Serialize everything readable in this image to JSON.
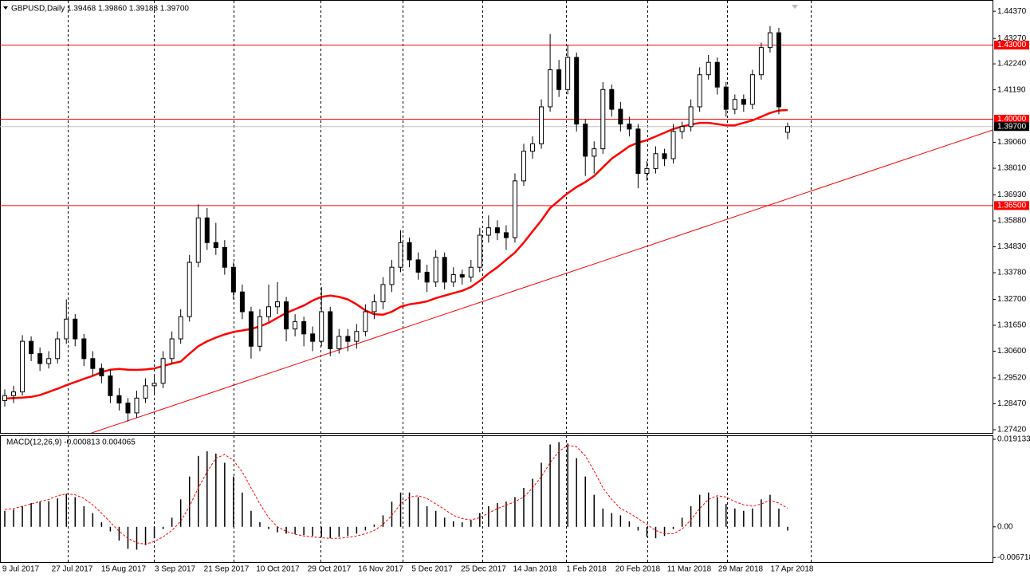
{
  "chart_data": [
    {
      "type": "candlestick",
      "title": "GBPUSD,Daily  1.39468 1.39860 1.39188 1.39700",
      "x_labels": [
        "9 Jul 2017",
        "27 Jul 2017",
        "15 Aug 2017",
        "3 Sep 2017",
        "21 Sep 2017",
        "10 Oct 2017",
        "29 Oct 2017",
        "16 Nov 2017",
        "5 Dec 2017",
        "25 Dec 2017",
        "14 Jan 2018",
        "1 Feb 2018",
        "20 Feb 2018",
        "11 Mar 2018",
        "29 Mar 2018",
        "17 Apr 2018"
      ],
      "ohlc": [
        [
          1.286,
          1.2905,
          1.2835,
          1.288
        ],
        [
          1.288,
          1.292,
          1.285,
          1.2895
        ],
        [
          1.2895,
          1.3125,
          1.288,
          1.31
        ],
        [
          1.31,
          1.312,
          1.302,
          1.305
        ],
        [
          1.305,
          1.3075,
          1.298,
          1.301
        ],
        [
          1.301,
          1.306,
          1.299,
          1.303
        ],
        [
          1.303,
          1.314,
          1.301,
          1.311
        ],
        [
          1.311,
          1.327,
          1.309,
          1.319
        ],
        [
          1.319,
          1.321,
          1.308,
          1.311
        ],
        [
          1.311,
          1.313,
          1.3,
          1.303
        ],
        [
          1.303,
          1.306,
          1.296,
          1.299
        ],
        [
          1.299,
          1.301,
          1.293,
          1.296
        ],
        [
          1.296,
          1.2985,
          1.285,
          1.288
        ],
        [
          1.288,
          1.291,
          1.282,
          1.285
        ],
        [
          1.285,
          1.287,
          1.2775,
          1.281
        ],
        [
          1.281,
          1.29,
          1.279,
          1.287
        ],
        [
          1.287,
          1.295,
          1.285,
          1.292
        ],
        [
          1.292,
          1.296,
          1.289,
          1.293
        ],
        [
          1.293,
          1.306,
          1.291,
          1.303
        ],
        [
          1.303,
          1.314,
          1.301,
          1.311
        ],
        [
          1.311,
          1.323,
          1.309,
          1.32
        ],
        [
          1.32,
          1.345,
          1.318,
          1.342
        ],
        [
          1.342,
          1.3655,
          1.34,
          1.36
        ],
        [
          1.36,
          1.364,
          1.347,
          1.35
        ],
        [
          1.35,
          1.358,
          1.345,
          1.348
        ],
        [
          1.348,
          1.351,
          1.337,
          1.34
        ],
        [
          1.34,
          1.342,
          1.327,
          1.33
        ],
        [
          1.33,
          1.333,
          1.319,
          1.322
        ],
        [
          1.322,
          1.324,
          1.303,
          1.308
        ],
        [
          1.308,
          1.323,
          1.306,
          1.32
        ],
        [
          1.32,
          1.333,
          1.318,
          1.324
        ],
        [
          1.324,
          1.334,
          1.321,
          1.326
        ],
        [
          1.326,
          1.328,
          1.31,
          1.315
        ],
        [
          1.315,
          1.321,
          1.312,
          1.318
        ],
        [
          1.318,
          1.32,
          1.308,
          1.313
        ],
        [
          1.313,
          1.316,
          1.306,
          1.31
        ],
        [
          1.31,
          1.332,
          1.308,
          1.322
        ],
        [
          1.322,
          1.324,
          1.304,
          1.307
        ],
        [
          1.307,
          1.315,
          1.305,
          1.312
        ],
        [
          1.312,
          1.315,
          1.306,
          1.31
        ],
        [
          1.31,
          1.317,
          1.307,
          1.314
        ],
        [
          1.314,
          1.325,
          1.312,
          1.322
        ],
        [
          1.322,
          1.329,
          1.319,
          1.326
        ],
        [
          1.326,
          1.336,
          1.323,
          1.333
        ],
        [
          1.333,
          1.343,
          1.33,
          1.34
        ],
        [
          1.34,
          1.355,
          1.338,
          1.35
        ],
        [
          1.35,
          1.352,
          1.34,
          1.343
        ],
        [
          1.343,
          1.346,
          1.335,
          1.338
        ],
        [
          1.338,
          1.341,
          1.33,
          1.334
        ],
        [
          1.334,
          1.347,
          1.332,
          1.344
        ],
        [
          1.344,
          1.346,
          1.331,
          1.334
        ],
        [
          1.334,
          1.34,
          1.332,
          1.337
        ],
        [
          1.337,
          1.339,
          1.333,
          1.336
        ],
        [
          1.336,
          1.343,
          1.334,
          1.34
        ],
        [
          1.34,
          1.356,
          1.338,
          1.353
        ],
        [
          1.353,
          1.361,
          1.35,
          1.356
        ],
        [
          1.356,
          1.359,
          1.351,
          1.354
        ],
        [
          1.354,
          1.357,
          1.347,
          1.352
        ],
        [
          1.352,
          1.378,
          1.35,
          1.375
        ],
        [
          1.375,
          1.39,
          1.373,
          1.387
        ],
        [
          1.387,
          1.393,
          1.384,
          1.39
        ],
        [
          1.39,
          1.408,
          1.388,
          1.405
        ],
        [
          1.405,
          1.4345,
          1.403,
          1.42
        ],
        [
          1.42,
          1.424,
          1.409,
          1.412
        ],
        [
          1.412,
          1.43,
          1.41,
          1.425
        ],
        [
          1.425,
          1.427,
          1.395,
          1.398
        ],
        [
          1.398,
          1.4,
          1.377,
          1.385
        ],
        [
          1.385,
          1.391,
          1.378,
          1.388
        ],
        [
          1.388,
          1.415,
          1.386,
          1.412
        ],
        [
          1.412,
          1.414,
          1.401,
          1.404
        ],
        [
          1.404,
          1.407,
          1.395,
          1.398
        ],
        [
          1.398,
          1.401,
          1.393,
          1.396
        ],
        [
          1.396,
          1.398,
          1.372,
          1.378
        ],
        [
          1.378,
          1.383,
          1.375,
          1.38
        ],
        [
          1.38,
          1.389,
          1.378,
          1.386
        ],
        [
          1.386,
          1.388,
          1.381,
          1.384
        ],
        [
          1.384,
          1.398,
          1.382,
          1.395
        ],
        [
          1.395,
          1.399,
          1.392,
          1.397
        ],
        [
          1.397,
          1.408,
          1.395,
          1.405
        ],
        [
          1.405,
          1.421,
          1.403,
          1.418
        ],
        [
          1.418,
          1.426,
          1.416,
          1.423
        ],
        [
          1.423,
          1.425,
          1.41,
          1.413
        ],
        [
          1.413,
          1.415,
          1.401,
          1.404
        ],
        [
          1.404,
          1.41,
          1.402,
          1.408
        ],
        [
          1.408,
          1.41,
          1.403,
          1.406
        ],
        [
          1.406,
          1.42,
          1.404,
          1.418
        ],
        [
          1.418,
          1.431,
          1.416,
          1.429
        ],
        [
          1.429,
          1.4377,
          1.427,
          1.435
        ],
        [
          1.435,
          1.437,
          1.402,
          1.405
        ],
        [
          1.39468,
          1.3986,
          1.39188,
          1.397
        ]
      ],
      "bull_color": "#ffffff",
      "bear_color": "#000000",
      "ma": {
        "color": "#ff0000",
        "values": [
          1.2868,
          1.287,
          1.2872,
          1.2875,
          1.2882,
          1.2895,
          1.2908,
          1.2922,
          1.2935,
          1.2948,
          1.296,
          1.2975,
          1.2985,
          1.2988,
          1.2985,
          1.2984,
          1.2986,
          1.299,
          1.3,
          1.301,
          1.3018,
          1.305,
          1.308,
          1.31,
          1.3115,
          1.3128,
          1.3138,
          1.3144,
          1.315,
          1.316,
          1.3175,
          1.3195,
          1.3215,
          1.323,
          1.3245,
          1.3265,
          1.328,
          1.3285,
          1.328,
          1.327,
          1.325,
          1.3225,
          1.321,
          1.3208,
          1.322,
          1.324,
          1.325,
          1.3255,
          1.3262,
          1.3275,
          1.3285,
          1.3295,
          1.3305,
          1.332,
          1.3345,
          1.3375,
          1.34,
          1.343,
          1.346,
          1.35,
          1.3545,
          1.359,
          1.364,
          1.367,
          1.37,
          1.3725,
          1.3745,
          1.377,
          1.3805,
          1.384,
          1.3865,
          1.389,
          1.3905,
          1.3915,
          1.393,
          1.3945,
          1.396,
          1.397,
          1.3978,
          1.3985,
          1.3985,
          1.398,
          1.3975,
          1.3975,
          1.3985,
          1.3995,
          1.401,
          1.4025,
          1.4035,
          1.4037
        ]
      },
      "levels": [
        {
          "value": 1.43,
          "label": "1.43000"
        },
        {
          "value": 1.4,
          "label": "1.40000"
        },
        {
          "value": 1.365,
          "label": "1.36500"
        }
      ],
      "level_color": "#ff0000",
      "current": {
        "value": 1.397,
        "label": "1.39700"
      },
      "trend_line": [
        1.2604,
        1.3956
      ],
      "ylim": [
        1.2729,
        1.4473
      ],
      "yticks": [
        {
          "value": 1.4437,
          "label": "1.44370"
        },
        {
          "value": 1.4327,
          "label": "1.43270"
        },
        {
          "value": 1.4224,
          "label": "1.42240"
        },
        {
          "value": 1.4119,
          "label": "1.41190"
        },
        {
          "value": 1.3906,
          "label": "1.39060"
        },
        {
          "value": 1.3801,
          "label": "1.38010"
        },
        {
          "value": 1.3693,
          "label": "1.36930"
        },
        {
          "value": 1.3588,
          "label": "1.35880"
        },
        {
          "value": 1.3483,
          "label": "1.34830"
        },
        {
          "value": 1.3378,
          "label": "1.33780"
        },
        {
          "value": 1.327,
          "label": "1.32700"
        },
        {
          "value": 1.3165,
          "label": "1.31650"
        },
        {
          "value": 1.306,
          "label": "1.30600"
        },
        {
          "value": 1.2952,
          "label": "1.29520"
        },
        {
          "value": 1.2847,
          "label": "1.28470"
        },
        {
          "value": 1.2742,
          "label": "1.27420"
        }
      ],
      "grid": true
    },
    {
      "type": "macd",
      "title": "MACD(12,26,9) -0.000813 0.004065",
      "histogram": {
        "color": "#000000",
        "values": [
          0.0035,
          0.0038,
          0.0045,
          0.0052,
          0.0055,
          0.0056,
          0.0062,
          0.0072,
          0.0065,
          0.0045,
          0.003,
          0.001,
          -0.001,
          -0.003,
          -0.0048,
          -0.005,
          -0.004,
          -0.0025,
          -0.0005,
          0.002,
          0.006,
          0.011,
          0.0155,
          0.0165,
          0.016,
          0.014,
          0.011,
          0.0075,
          0.0035,
          0.001,
          -0.0005,
          -0.0012,
          -0.0015,
          -0.0016,
          -0.0018,
          -0.002,
          -0.0022,
          -0.0025,
          -0.0022,
          -0.002,
          -0.0015,
          -0.0008,
          0.0005,
          0.0025,
          0.0055,
          0.0075,
          0.0075,
          0.0065,
          0.0045,
          0.0035,
          0.002,
          0.0012,
          0.001,
          0.0015,
          0.003,
          0.0045,
          0.0052,
          0.0055,
          0.0065,
          0.0085,
          0.0105,
          0.014,
          0.018,
          0.0185,
          0.0182,
          0.015,
          0.011,
          0.007,
          0.004,
          0.003,
          0.0025,
          0.0012,
          -0.0008,
          -0.0022,
          -0.0025,
          -0.002,
          -0.0005,
          0.002,
          0.0045,
          0.007,
          0.0075,
          0.0065,
          0.005,
          0.004,
          0.0035,
          0.004,
          0.006,
          0.007,
          0.004,
          -0.000813
        ]
      },
      "signal": {
        "color": "#ff0000",
        "values": [
          0.0038,
          0.004,
          0.0045,
          0.005,
          0.0055,
          0.006,
          0.0068,
          0.0072,
          0.007,
          0.0062,
          0.0048,
          0.003,
          0.001,
          -0.001,
          -0.0025,
          -0.0035,
          -0.0038,
          -0.0032,
          -0.0022,
          -0.0008,
          0.0012,
          0.0045,
          0.0085,
          0.012,
          0.015,
          0.0158,
          0.0145,
          0.012,
          0.0085,
          0.005,
          0.002,
          0.0,
          -0.001,
          -0.0016,
          -0.002,
          -0.0022,
          -0.0024,
          -0.0025,
          -0.0025,
          -0.0023,
          -0.002,
          -0.0015,
          -0.0008,
          0.0005,
          0.0025,
          0.005,
          0.0065,
          0.0068,
          0.0062,
          0.005,
          0.0038,
          0.0025,
          0.0018,
          0.0015,
          0.002,
          0.003,
          0.004,
          0.0047,
          0.0055,
          0.0065,
          0.0085,
          0.011,
          0.014,
          0.0165,
          0.0178,
          0.0175,
          0.0155,
          0.0122,
          0.0085,
          0.006,
          0.004,
          0.003,
          0.0018,
          0.0005,
          -0.0008,
          -0.0015,
          -0.0015,
          -0.0005,
          0.0015,
          0.004,
          0.006,
          0.0068,
          0.0065,
          0.0055,
          0.0048,
          0.0045,
          0.005,
          0.0058,
          0.0052,
          0.004065
        ]
      },
      "ylim": [
        -0.0077,
        0.02
      ],
      "yticks": [
        0.019133,
        {
          "value": 0,
          "label": "0.00"
        },
        -0.006718
      ]
    }
  ]
}
